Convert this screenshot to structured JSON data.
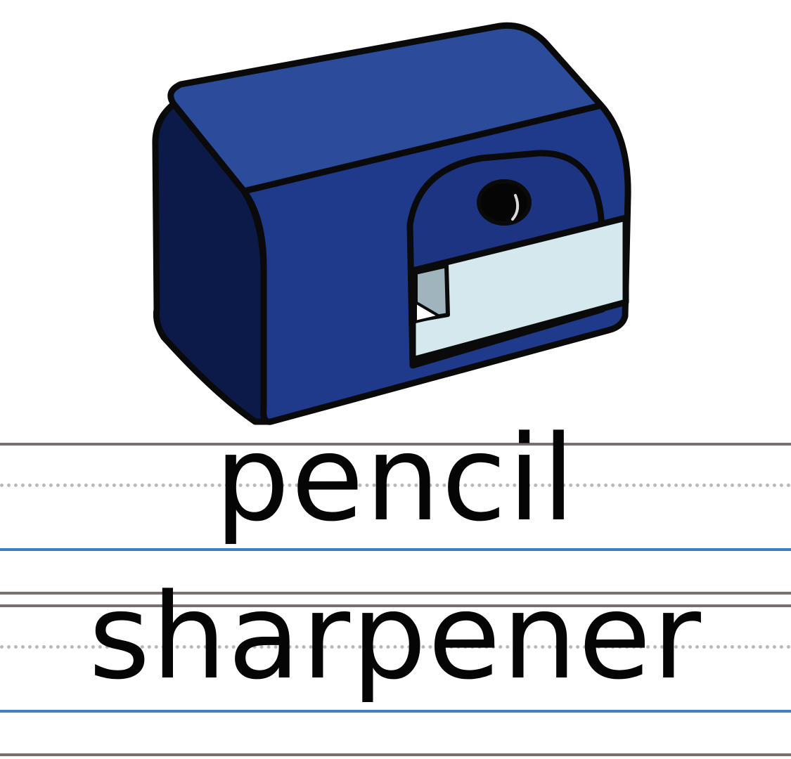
{
  "image": {
    "subject": "pencil-sharpener",
    "colors": {
      "body_top": "#2b4b9b",
      "body_front": "#1f3a8a",
      "body_side": "#0c1a4a",
      "drawer": "#d4e8ee",
      "outline": "#0a0a0a"
    }
  },
  "caption": {
    "line1": "pencil",
    "line2": "sharpener"
  },
  "ruled_lines": {
    "top_color": "#7a6e6e",
    "midline_color": "#b9b9b9",
    "baseline_color": "#3f7ec2"
  }
}
